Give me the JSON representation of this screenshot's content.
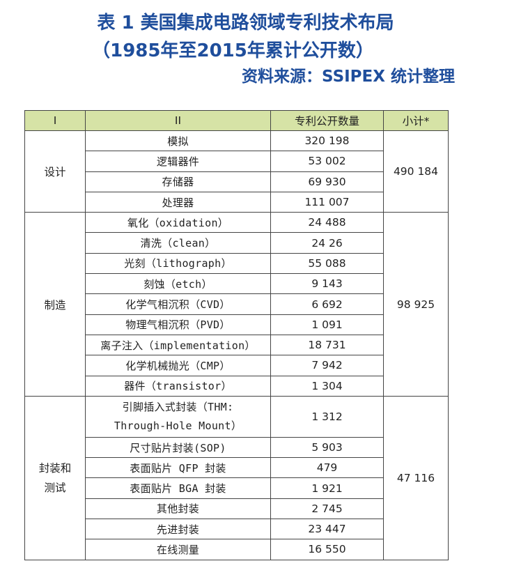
{
  "title": {
    "line1": "表 1  美国集成电路领域专利技术布局",
    "line2": "（1985年至2015年累计公开数）",
    "source": "资料来源：SSIPEX 统计整理"
  },
  "table": {
    "headers": [
      "I",
      "II",
      "专利公开数量",
      "小计*"
    ],
    "groups": [
      {
        "category": "设计",
        "subtotal": "490 184",
        "rows": [
          {
            "item": "模拟",
            "count": "320 198"
          },
          {
            "item": "逻辑器件",
            "count": "53 002"
          },
          {
            "item": "存储器",
            "count": "69 930"
          },
          {
            "item": "处理器",
            "count": "111 007"
          }
        ]
      },
      {
        "category": "制造",
        "subtotal": "98 925",
        "rows": [
          {
            "item": "氧化（oxidation）",
            "count": "24 488"
          },
          {
            "item": "清洗（clean）",
            "count": "24 26"
          },
          {
            "item": "光刻（lithograph）",
            "count": "55 088"
          },
          {
            "item": "刻蚀（etch）",
            "count": "9 143"
          },
          {
            "item": "化学气相沉积（CVD）",
            "count": "6 692"
          },
          {
            "item": "物理气相沉积（PVD）",
            "count": "1 091"
          },
          {
            "item": "离子注入（implementation）",
            "count": "18 731"
          },
          {
            "item": "化学机械抛光（CMP）",
            "count": "7 942"
          },
          {
            "item": "器件（transistor）",
            "count": "1 304"
          }
        ]
      },
      {
        "category_line1": "封装和",
        "category_line2": "测试",
        "subtotal": "47 116",
        "rows": [
          {
            "item_line1": "引脚插入式封装（THM:",
            "item_line2": "Through-Hole Mount）",
            "count": "1 312"
          },
          {
            "item": "尺寸贴片封装(SOP)",
            "count": "5 903"
          },
          {
            "item": "表面贴片 QFP 封装",
            "count": "479"
          },
          {
            "item": "表面贴片 BGA 封装",
            "count": "1 921"
          },
          {
            "item": "其他封装",
            "count": "2 745"
          },
          {
            "item": "先进封装",
            "count": "23 447"
          },
          {
            "item": "在线测量",
            "count": "16 550"
          }
        ]
      }
    ]
  }
}
